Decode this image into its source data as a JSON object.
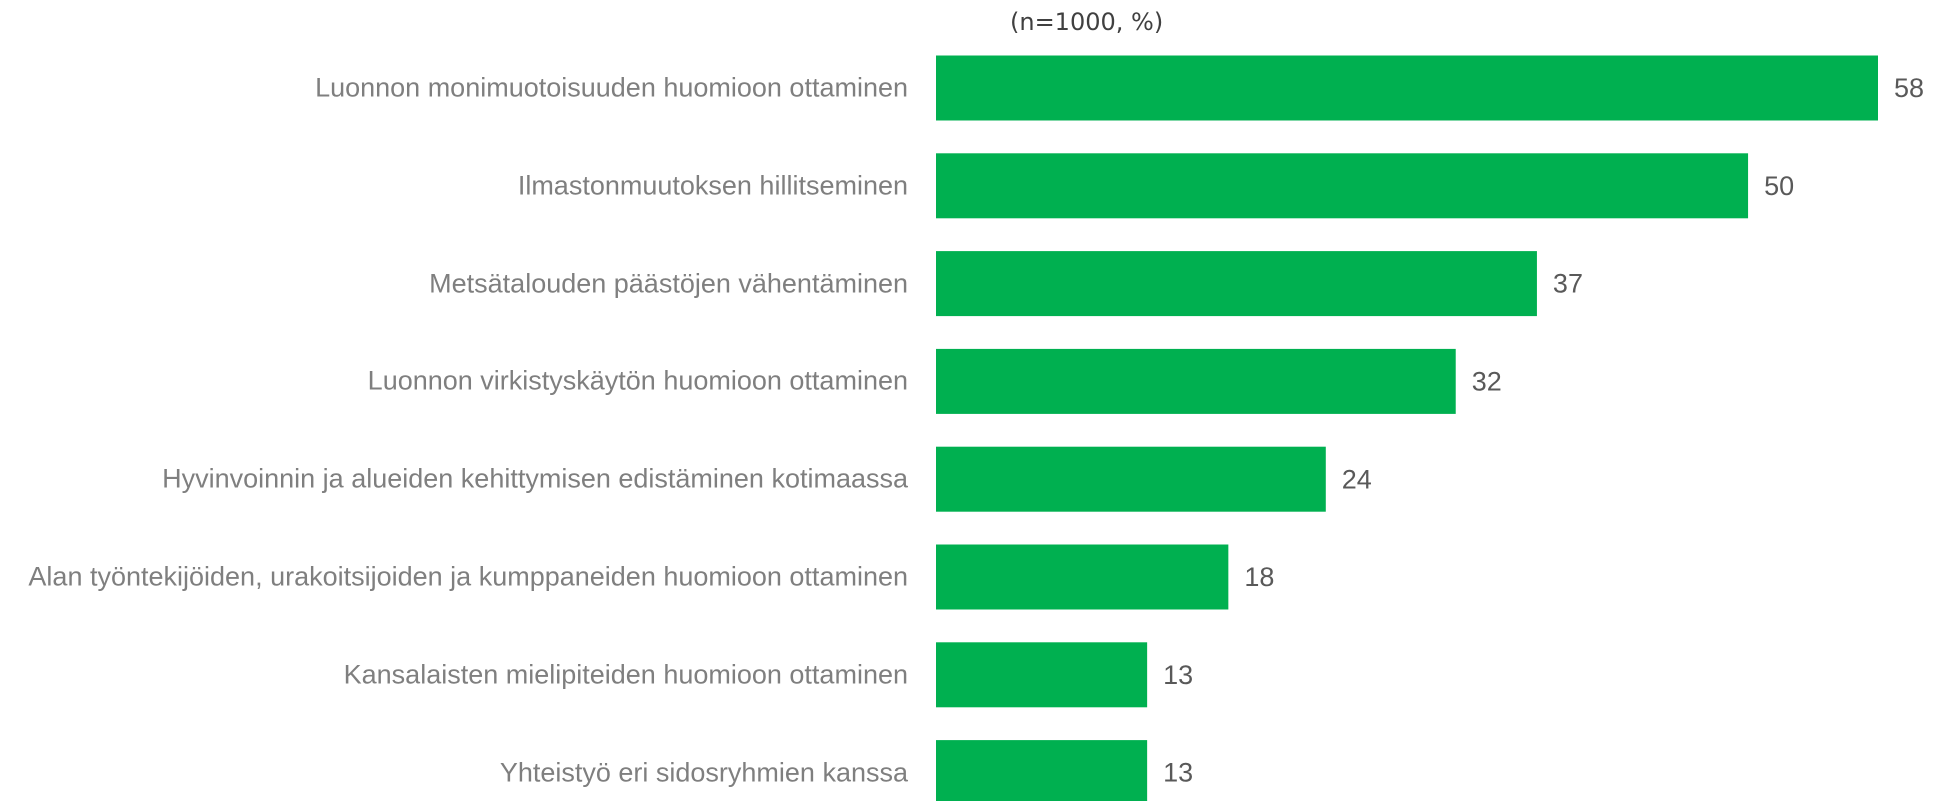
{
  "chart_data": {
    "type": "barh",
    "subtitle": "(n=1000, %)",
    "categories": [
      "Luonnon monimuotoisuuden huomioon ottaminen",
      "Ilmastonmuutoksen hillitseminen",
      "Metsätalouden päästöjen vähentäminen",
      "Luonnon virkistyskäytön huomioon ottaminen",
      "Hyvinvoinnin ja alueiden kehittymisen edistäminen kotimaassa",
      "Alan työntekijöiden, urakoitsijoiden ja kumppaneiden huomioon ottaminen",
      "Kansalaisten mielipiteiden huomioon ottaminen",
      "Yhteistyö eri sidosryhmien kanssa"
    ],
    "values": [
      58,
      50,
      37,
      32,
      24,
      18,
      13,
      13
    ],
    "color": "#00b050"
  }
}
